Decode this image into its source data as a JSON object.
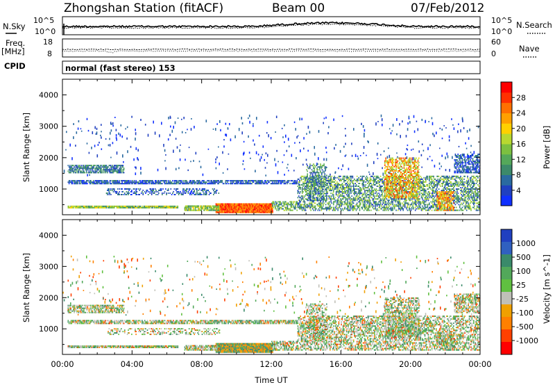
{
  "header": {
    "title": "Zhongshan Station (fitACF)",
    "beam": "Beam 00",
    "date": "07/Feb/2012"
  },
  "noise_panel": {
    "left_label": "N.Sky",
    "right_label": "N.Search",
    "left_ticks": [
      "10^5",
      "10^0"
    ],
    "right_ticks": [
      "10^5",
      "10^0"
    ]
  },
  "freq_panel": {
    "left_label_line1": "Freq.",
    "left_label_line2": "[MHz]",
    "right_label": "Nave",
    "left_ticks": [
      "18",
      "8"
    ],
    "right_ticks": [
      "60",
      "0"
    ]
  },
  "cpid": {
    "label": "CPID",
    "value": "normal (fast stereo) 153"
  },
  "chart_data": [
    {
      "type": "heatmap",
      "title": "",
      "xlabel": "",
      "ylabel": "Slant Range [km]",
      "y_ticks": [
        "1000",
        "2000",
        "3000",
        "4000"
      ],
      "ylim": [
        180,
        4500
      ],
      "xlim_hours": [
        0,
        24
      ],
      "colorbar": {
        "label": "Power [dB]",
        "ticks": [
          "4",
          "8",
          "12",
          "16",
          "20",
          "24",
          "28"
        ],
        "colors": [
          "#1030ff",
          "#2040c0",
          "#2a6aa0",
          "#3c8a6a",
          "#54a85a",
          "#7cc040",
          "#b8d830",
          "#ffd000",
          "#ffa000",
          "#ff7000",
          "#ff3000",
          "#ff0000"
        ]
      },
      "description_bands": [
        {
          "t0": 0.2,
          "t1": 6.5,
          "r0": 350,
          "r1": 480,
          "level": "mixed-high"
        },
        {
          "t0": 8.8,
          "t1": 12.0,
          "r0": 250,
          "r1": 500,
          "level": "very-high"
        },
        {
          "t0": 0.2,
          "t1": 13.5,
          "r0": 1150,
          "r1": 1300,
          "level": "low"
        },
        {
          "t0": 13.5,
          "t1": 24,
          "r0": 300,
          "r1": 1800,
          "level": "mixed"
        }
      ]
    },
    {
      "type": "heatmap",
      "title": "",
      "xlabel": "Time UT",
      "ylabel": "Slant Range [km]",
      "y_ticks": [
        "1000",
        "2000",
        "3000",
        "4000"
      ],
      "x_ticks": [
        "00:00",
        "04:00",
        "08:00",
        "12:00",
        "16:00",
        "20:00",
        "00:00"
      ],
      "ylim": [
        180,
        4500
      ],
      "xlim_hours": [
        0,
        24
      ],
      "colorbar": {
        "label": "Velocity [m s^-1]",
        "ticks": [
          "1000",
          "500",
          "100",
          "25",
          "-25",
          "-100",
          "-500",
          "-1000"
        ],
        "colors": [
          "#2040c0",
          "#3060c0",
          "#3a8a6a",
          "#52a85a",
          "#60c040",
          "#c0c0b8",
          "#f0a000",
          "#ff8000",
          "#ff4000",
          "#ff0000"
        ]
      }
    }
  ]
}
